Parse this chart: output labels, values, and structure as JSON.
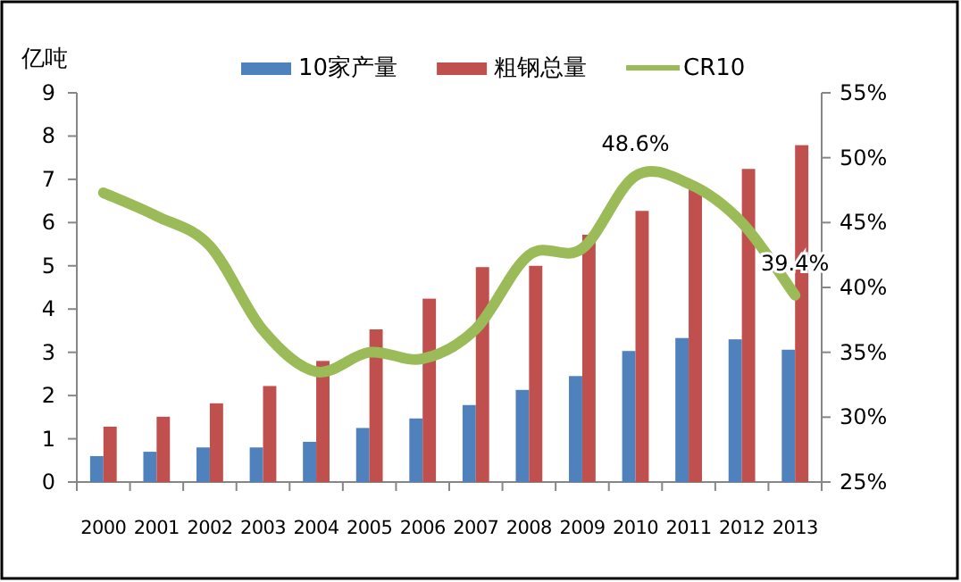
{
  "chart_data": {
    "type": "bar",
    "ylabel": "亿吨",
    "categories": [
      "2000",
      "2001",
      "2002",
      "2003",
      "2004",
      "2005",
      "2006",
      "2007",
      "2008",
      "2009",
      "2010",
      "2011",
      "2012",
      "2013"
    ],
    "series": [
      {
        "name": "10家产量",
        "color": "#4f81bd",
        "values": [
          0.6,
          0.7,
          0.8,
          0.8,
          0.93,
          1.25,
          1.47,
          1.78,
          2.13,
          2.45,
          3.03,
          3.33,
          3.3,
          3.06
        ]
      },
      {
        "name": "粗钢总量",
        "color": "#c0504d",
        "values": [
          1.28,
          1.51,
          1.82,
          2.22,
          2.8,
          3.53,
          4.24,
          4.97,
          5.0,
          5.72,
          6.27,
          6.83,
          7.24,
          7.79
        ]
      },
      {
        "name": "CR10",
        "type": "line",
        "axis": "y2",
        "color": "#9bbb59",
        "values": [
          47.3,
          45.5,
          43.2,
          36.7,
          33.5,
          35,
          34.5,
          36.8,
          42.5,
          43,
          48.6,
          48,
          45,
          39.4
        ],
        "value_labels": [
          null,
          null,
          null,
          null,
          null,
          null,
          null,
          null,
          null,
          null,
          "48.6%",
          null,
          null,
          "39.4%"
        ]
      }
    ],
    "ylim": [
      0,
      9
    ],
    "yticks": [
      0,
      1,
      2,
      3,
      4,
      5,
      6,
      7,
      8,
      9
    ],
    "y2lim": [
      25,
      55
    ],
    "y2ticks": [
      {
        "value": 25,
        "label": "25%"
      },
      {
        "value": 30,
        "label": "30%"
      },
      {
        "value": 35,
        "label": "35%"
      },
      {
        "value": 40,
        "label": "40%"
      },
      {
        "value": 45,
        "label": "45%"
      },
      {
        "value": 50,
        "label": "50%"
      },
      {
        "value": 55,
        "label": "55%"
      }
    ],
    "grid": false,
    "legend": "top"
  }
}
